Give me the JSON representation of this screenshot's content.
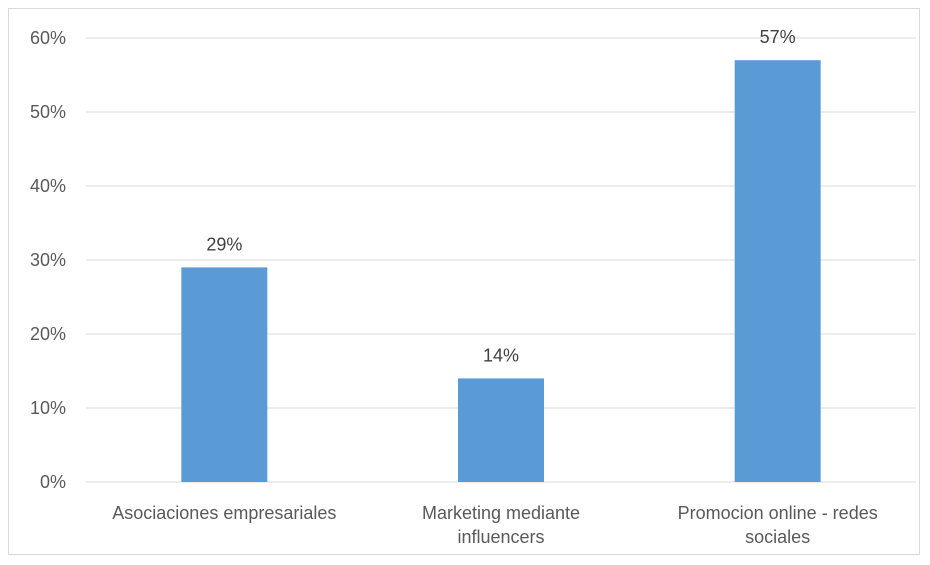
{
  "chart_data": {
    "type": "bar",
    "categories": [
      [
        "Asociaciones empresariales"
      ],
      [
        "Marketing mediante",
        "influencers"
      ],
      [
        "Promocion online - redes",
        "sociales"
      ]
    ],
    "values": [
      29,
      14,
      57
    ],
    "data_labels": [
      "29%",
      "14%",
      "57%"
    ],
    "y_ticks": [
      "0%",
      "10%",
      "20%",
      "30%",
      "40%",
      "50%",
      "60%"
    ],
    "ylim": [
      0,
      60
    ],
    "grid": true,
    "legend": "none",
    "title": "",
    "xlabel": "",
    "ylabel": "",
    "colors": {
      "bar": "#5b9bd5",
      "grid": "#d9d9d9",
      "axis": "#d9d9d9",
      "text": "#595959"
    }
  }
}
